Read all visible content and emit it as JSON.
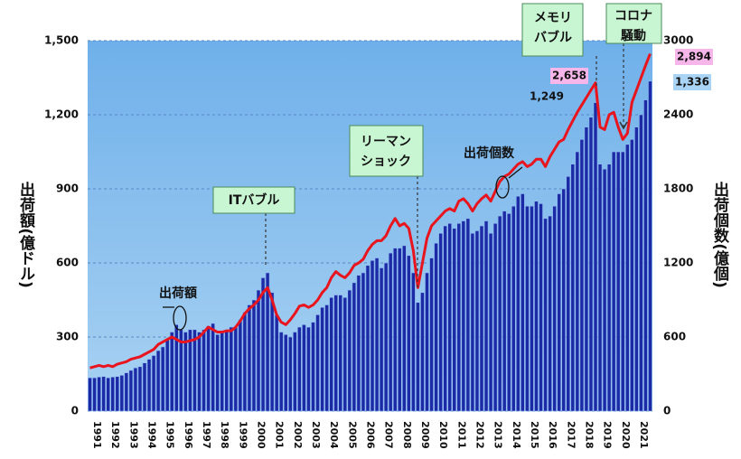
{
  "chart_data": {
    "type": "bar_line",
    "y_title": "出荷額(億ドル)",
    "y2_title": "出荷個数(億個)",
    "categories": [
      "1991",
      null,
      null,
      null,
      "1992",
      null,
      null,
      null,
      "1993",
      null,
      null,
      null,
      "1994",
      null,
      null,
      null,
      "1995",
      null,
      null,
      null,
      "1996",
      null,
      null,
      null,
      "1997",
      null,
      null,
      null,
      "1998",
      null,
      null,
      null,
      "1999",
      null,
      null,
      null,
      "2000",
      null,
      null,
      null,
      "2001",
      null,
      null,
      null,
      "2002",
      null,
      null,
      null,
      "2003",
      null,
      null,
      null,
      "2004",
      null,
      null,
      null,
      "2005",
      null,
      null,
      null,
      "2006",
      null,
      null,
      null,
      "2007",
      null,
      null,
      null,
      "2008",
      null,
      null,
      null,
      "2009",
      null,
      null,
      null,
      "2010",
      null,
      null,
      null,
      "2011",
      null,
      null,
      null,
      "2012",
      null,
      null,
      null,
      "2013",
      null,
      null,
      null,
      "2014",
      null,
      null,
      null,
      "2015",
      null,
      null,
      null,
      "2016",
      null,
      null,
      null,
      "2017",
      null,
      null,
      null,
      "2018",
      null,
      null,
      null,
      "2019",
      null,
      null,
      null,
      "2020",
      null,
      null,
      null,
      "2021",
      null,
      null,
      null
    ],
    "series": [
      {
        "name": "出荷額",
        "color": "#1c2aa6",
        "axis": "y",
        "values": [
          135,
          135,
          138,
          140,
          135,
          138,
          140,
          145,
          155,
          165,
          175,
          180,
          195,
          210,
          225,
          245,
          260,
          290,
          320,
          350,
          330,
          320,
          330,
          330,
          320,
          330,
          345,
          355,
          310,
          320,
          330,
          340,
          340,
          370,
          400,
          430,
          450,
          490,
          540,
          560,
          480,
          390,
          320,
          310,
          300,
          320,
          340,
          350,
          340,
          360,
          390,
          420,
          430,
          460,
          470,
          470,
          460,
          490,
          520,
          550,
          560,
          590,
          610,
          620,
          580,
          600,
          640,
          660,
          660,
          670,
          630,
          560,
          440,
          480,
          560,
          620,
          680,
          720,
          750,
          760,
          740,
          760,
          770,
          780,
          720,
          730,
          750,
          770,
          720,
          760,
          790,
          810,
          800,
          830,
          870,
          880,
          830,
          830,
          850,
          840,
          780,
          790,
          830,
          880,
          900,
          950,
          1000,
          1050,
          1100,
          1150,
          1190,
          1249,
          1000,
          980,
          1000,
          1050,
          1050,
          1050,
          1080,
          1100,
          1150,
          1200,
          1260,
          1336
        ],
        "value_labels": [
          null,
          null,
          null,
          null,
          null,
          null,
          null,
          null,
          null,
          null,
          null,
          null,
          null,
          null,
          null,
          null,
          null,
          null,
          null,
          null,
          null,
          null,
          null,
          null,
          null,
          null,
          null,
          null,
          null,
          null,
          null,
          null,
          null,
          null,
          null,
          null,
          null,
          null,
          null,
          null,
          null,
          null,
          null,
          null,
          null,
          null,
          null,
          null,
          null,
          null,
          null,
          null,
          null,
          null,
          null,
          null,
          null,
          null,
          null,
          null,
          null,
          null,
          null,
          null,
          null,
          null,
          null,
          null,
          null,
          null,
          null,
          null,
          null,
          null,
          null,
          null,
          null,
          null,
          null,
          null,
          null,
          null,
          null,
          null,
          null,
          null,
          null,
          null,
          null,
          null,
          null,
          null,
          null,
          null,
          null,
          null,
          null,
          null,
          null,
          null,
          null,
          null,
          null,
          null,
          null,
          null,
          null,
          null,
          null,
          null,
          null,
          "1,249",
          null,
          null,
          null,
          null,
          null,
          null,
          null,
          null,
          null,
          null,
          null,
          "1,336"
        ]
      },
      {
        "name": "出荷個数",
        "color": "#e8141e",
        "axis": "y2",
        "values": [
          350,
          360,
          370,
          360,
          370,
          360,
          380,
          390,
          400,
          420,
          430,
          440,
          460,
          480,
          500,
          540,
          560,
          580,
          600,
          580,
          560,
          560,
          570,
          580,
          600,
          640,
          680,
          660,
          640,
          640,
          650,
          650,
          680,
          730,
          790,
          830,
          860,
          900,
          960,
          1000,
          900,
          780,
          720,
          700,
          740,
          790,
          850,
          860,
          840,
          860,
          900,
          960,
          1000,
          1080,
          1130,
          1100,
          1080,
          1120,
          1180,
          1200,
          1230,
          1300,
          1350,
          1380,
          1380,
          1420,
          1500,
          1560,
          1500,
          1520,
          1480,
          1300,
          1000,
          1200,
          1400,
          1500,
          1540,
          1580,
          1620,
          1640,
          1620,
          1700,
          1720,
          1680,
          1620,
          1680,
          1720,
          1750,
          1700,
          1780,
          1860,
          1900,
          1920,
          1960,
          2000,
          2020,
          1980,
          2000,
          2040,
          2040,
          1980,
          2060,
          2120,
          2180,
          2200,
          2280,
          2350,
          2420,
          2480,
          2540,
          2600,
          2658,
          2300,
          2280,
          2400,
          2420,
          2300,
          2200,
          2250,
          2500,
          2600,
          2700,
          2800,
          2894
        ],
        "value_labels": [
          null,
          null,
          null,
          null,
          null,
          null,
          null,
          null,
          null,
          null,
          null,
          null,
          null,
          null,
          null,
          null,
          null,
          null,
          null,
          null,
          null,
          null,
          null,
          null,
          null,
          null,
          null,
          null,
          null,
          null,
          null,
          null,
          null,
          null,
          null,
          null,
          null,
          null,
          null,
          null,
          null,
          null,
          null,
          null,
          null,
          null,
          null,
          null,
          null,
          null,
          null,
          null,
          null,
          null,
          null,
          null,
          null,
          null,
          null,
          null,
          null,
          null,
          null,
          null,
          null,
          null,
          null,
          null,
          null,
          null,
          null,
          null,
          null,
          null,
          null,
          null,
          null,
          null,
          null,
          null,
          null,
          null,
          null,
          null,
          null,
          null,
          null,
          null,
          null,
          null,
          null,
          null,
          null,
          null,
          null,
          null,
          null,
          null,
          null,
          null,
          null,
          null,
          null,
          null,
          null,
          null,
          null,
          null,
          null,
          null,
          null,
          "2,658",
          null,
          null,
          null,
          null,
          null,
          null,
          null,
          null,
          null,
          null,
          null,
          "2,894"
        ]
      }
    ],
    "ylim": [
      0,
      1500
    ],
    "yticks": [
      0,
      300,
      600,
      900,
      {
        "value": 1200,
        "label": "1,200"
      },
      {
        "value": 1500,
        "label": "1,500"
      }
    ],
    "y2lim": [
      0,
      3000
    ],
    "y2ticks": [
      0,
      600,
      1200,
      1800,
      2400,
      3000
    ],
    "annotations": [
      {
        "lines": [
          "メモリ",
          "バブル"
        ]
      },
      {
        "lines": [
          "コロナ",
          "騒動"
        ]
      },
      {
        "lines": [
          "ITバブル"
        ]
      },
      {
        "lines": [
          "リーマン",
          "ショック"
        ]
      },
      {
        "lines": [
          "出荷個数"
        ]
      },
      {
        "lines": [
          "出荷額"
        ]
      }
    ]
  }
}
